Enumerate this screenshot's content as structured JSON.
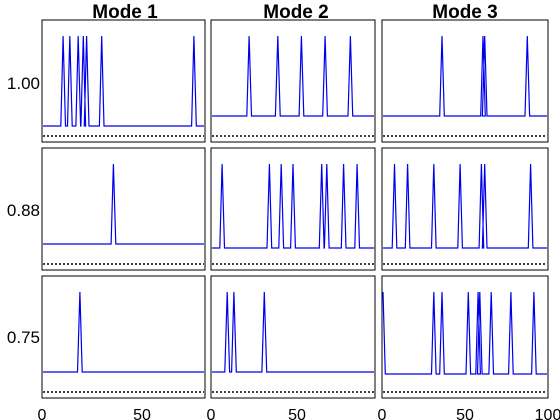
{
  "figure": {
    "column_titles": [
      "Mode 1",
      "Mode 2",
      "Mode 3"
    ],
    "row_labels": [
      "1.00",
      "0.88",
      "0.75"
    ],
    "line_color": "#0000ee",
    "x_tick_labels": [
      "0",
      "50",
      "0",
      "50",
      "0",
      "50",
      "100"
    ]
  },
  "chart_data": {
    "type": "line",
    "title": "",
    "xlabel": "",
    "ylabel": "",
    "grid": false,
    "legend": "none",
    "panels": [
      {
        "row": "1.00",
        "col": "Mode 1",
        "xlim": [
          0,
          96
        ],
        "ylim": [
          0,
          1
        ],
        "baseline_level": 0.1,
        "spikes": [
          12,
          16,
          21,
          24,
          26,
          35,
          90
        ]
      },
      {
        "row": "1.00",
        "col": "Mode 2",
        "xlim": [
          0,
          96
        ],
        "ylim": [
          0,
          1
        ],
        "baseline_level": 0.2,
        "spikes": [
          22,
          39,
          53,
          67,
          82
        ]
      },
      {
        "row": "1.00",
        "col": "Mode 3",
        "xlim": [
          0,
          100
        ],
        "ylim": [
          0,
          1
        ],
        "baseline_level": 0.2,
        "spikes": [
          36,
          61,
          62,
          88
        ]
      },
      {
        "row": "0.88",
        "col": "Mode 1",
        "xlim": [
          0,
          96
        ],
        "ylim": [
          0,
          1
        ],
        "baseline_level": 0.2,
        "spikes": [
          42
        ]
      },
      {
        "row": "0.88",
        "col": "Mode 2",
        "xlim": [
          0,
          96
        ],
        "ylim": [
          0,
          1
        ],
        "baseline_level": 0.16,
        "spikes": [
          6,
          34,
          41,
          48,
          65,
          68,
          78,
          86
        ]
      },
      {
        "row": "0.88",
        "col": "Mode 3",
        "xlim": [
          0,
          100
        ],
        "ylim": [
          0,
          1
        ],
        "baseline_level": 0.16,
        "spikes": [
          7,
          15,
          31,
          47,
          60,
          62,
          90
        ]
      },
      {
        "row": "0.75",
        "col": "Mode 1",
        "xlim": [
          0,
          96
        ],
        "ylim": [
          0,
          1
        ],
        "baseline_level": 0.2,
        "spikes": [
          22
        ]
      },
      {
        "row": "0.75",
        "col": "Mode 2",
        "xlim": [
          0,
          96
        ],
        "ylim": [
          0,
          1
        ],
        "baseline_level": 0.2,
        "spikes": [
          9,
          13,
          31
        ]
      },
      {
        "row": "0.75",
        "col": "Mode 3",
        "xlim": [
          0,
          100
        ],
        "ylim": [
          0,
          1
        ],
        "baseline_level": 0.18,
        "spikes": [
          0,
          31,
          36,
          52,
          58,
          59,
          66,
          78,
          92
        ]
      }
    ]
  }
}
